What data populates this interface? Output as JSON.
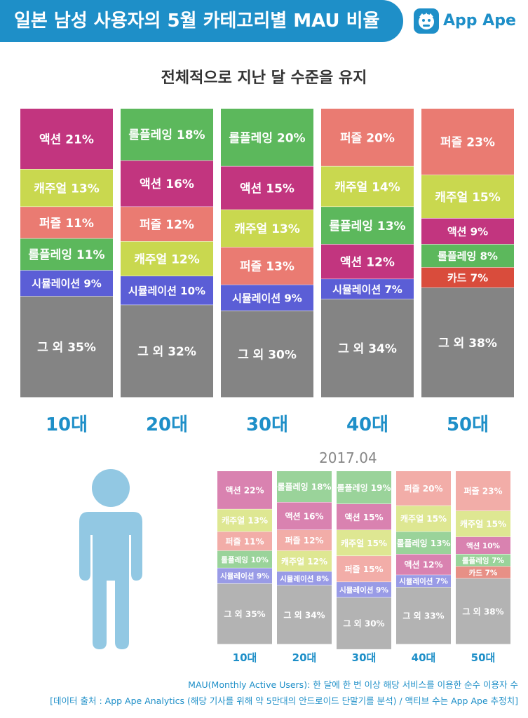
{
  "header": {
    "title": "일본 남성 사용자의 5월 카테고리별 MAU 비율",
    "brand": "App Ape",
    "brand_color": "#1e8fc8"
  },
  "subtitle": "전체적으로 지난 달 수준을 유지",
  "category_colors": {
    "액션": "#c2357f",
    "캐주얼": "#c9d84f",
    "퍼즐": "#ea7b72",
    "롤플레잉": "#5cb85c",
    "시뮬레이션": "#5b5ed6",
    "카드": "#d94c3c",
    "그 외": "#848484"
  },
  "chart_data": [
    {
      "type": "bar",
      "stacked": true,
      "period": "5월",
      "categories": [
        "10대",
        "20대",
        "30대",
        "40대",
        "50대"
      ],
      "columns": [
        {
          "age": "10대",
          "segments": [
            {
              "name": "액션",
              "value": 21
            },
            {
              "name": "캐주얼",
              "value": 13
            },
            {
              "name": "퍼즐",
              "value": 11
            },
            {
              "name": "롤플레잉",
              "value": 11
            },
            {
              "name": "시뮬레이션",
              "value": 9
            },
            {
              "name": "그 외",
              "value": 35
            }
          ]
        },
        {
          "age": "20대",
          "segments": [
            {
              "name": "롤플레잉",
              "value": 18
            },
            {
              "name": "액션",
              "value": 16
            },
            {
              "name": "퍼즐",
              "value": 12
            },
            {
              "name": "캐주얼",
              "value": 12
            },
            {
              "name": "시뮬레이션",
              "value": 10
            },
            {
              "name": "그 외",
              "value": 32
            }
          ]
        },
        {
          "age": "30대",
          "segments": [
            {
              "name": "롤플레잉",
              "value": 20
            },
            {
              "name": "액션",
              "value": 15
            },
            {
              "name": "캐주얼",
              "value": 13
            },
            {
              "name": "퍼즐",
              "value": 13
            },
            {
              "name": "시뮬레이션",
              "value": 9
            },
            {
              "name": "그 외",
              "value": 30
            }
          ]
        },
        {
          "age": "40대",
          "segments": [
            {
              "name": "퍼즐",
              "value": 20
            },
            {
              "name": "캐주얼",
              "value": 14
            },
            {
              "name": "롤플레잉",
              "value": 13
            },
            {
              "name": "액션",
              "value": 12
            },
            {
              "name": "시뮬레이션",
              "value": 7
            },
            {
              "name": "그 외",
              "value": 34
            }
          ]
        },
        {
          "age": "50대",
          "segments": [
            {
              "name": "퍼즐",
              "value": 23
            },
            {
              "name": "캐주얼",
              "value": 15
            },
            {
              "name": "액션",
              "value": 9
            },
            {
              "name": "롤플레잉",
              "value": 8
            },
            {
              "name": "카드",
              "value": 7
            },
            {
              "name": "그 외",
              "value": 38
            }
          ]
        }
      ]
    },
    {
      "type": "bar",
      "stacked": true,
      "period": "2017.04",
      "categories": [
        "10대",
        "20대",
        "30대",
        "40대",
        "50대"
      ],
      "columns": [
        {
          "age": "10대",
          "segments": [
            {
              "name": "액션",
              "value": 22
            },
            {
              "name": "캐주얼",
              "value": 13
            },
            {
              "name": "퍼즐",
              "value": 11
            },
            {
              "name": "롤플레잉",
              "value": 10
            },
            {
              "name": "시뮬레이션",
              "value": 9
            },
            {
              "name": "그 외",
              "value": 35
            }
          ]
        },
        {
          "age": "20대",
          "segments": [
            {
              "name": "롤플레잉",
              "value": 18
            },
            {
              "name": "액션",
              "value": 16
            },
            {
              "name": "퍼즐",
              "value": 12
            },
            {
              "name": "캐주얼",
              "value": 12
            },
            {
              "name": "시뮬레이션",
              "value": 8
            },
            {
              "name": "그 외",
              "value": 34
            }
          ]
        },
        {
          "age": "30대",
          "segments": [
            {
              "name": "롤플레잉",
              "value": 19
            },
            {
              "name": "액션",
              "value": 15
            },
            {
              "name": "캐주얼",
              "value": 15
            },
            {
              "name": "퍼즐",
              "value": 15
            },
            {
              "name": "시뮬레이션",
              "value": 9
            },
            {
              "name": "그 외",
              "value": 30
            }
          ]
        },
        {
          "age": "40대",
          "segments": [
            {
              "name": "퍼즐",
              "value": 20
            },
            {
              "name": "캐주얼",
              "value": 15
            },
            {
              "name": "롤플레잉",
              "value": 13
            },
            {
              "name": "액션",
              "value": 12
            },
            {
              "name": "시뮬레이션",
              "value": 7
            },
            {
              "name": "그 외",
              "value": 33
            }
          ]
        },
        {
          "age": "50대",
          "segments": [
            {
              "name": "퍼즐",
              "value": 23
            },
            {
              "name": "캐주얼",
              "value": 15
            },
            {
              "name": "액션",
              "value": 10
            },
            {
              "name": "롤플레잉",
              "value": 7
            },
            {
              "name": "카드",
              "value": 7
            },
            {
              "name": "그 외",
              "value": 38
            }
          ]
        }
      ]
    }
  ],
  "footnotes": [
    "MAU(Monthly Active Users): 한 달에 한 번 이상 해당 서비스를 이용한 순수 이용자 수",
    "[데이터 출처 : App Ape Analytics (해당 기사를 위해 약 5만대의 안드로이드 단말기를 분석) / 액티브 수는 App Ape 추정치]"
  ]
}
